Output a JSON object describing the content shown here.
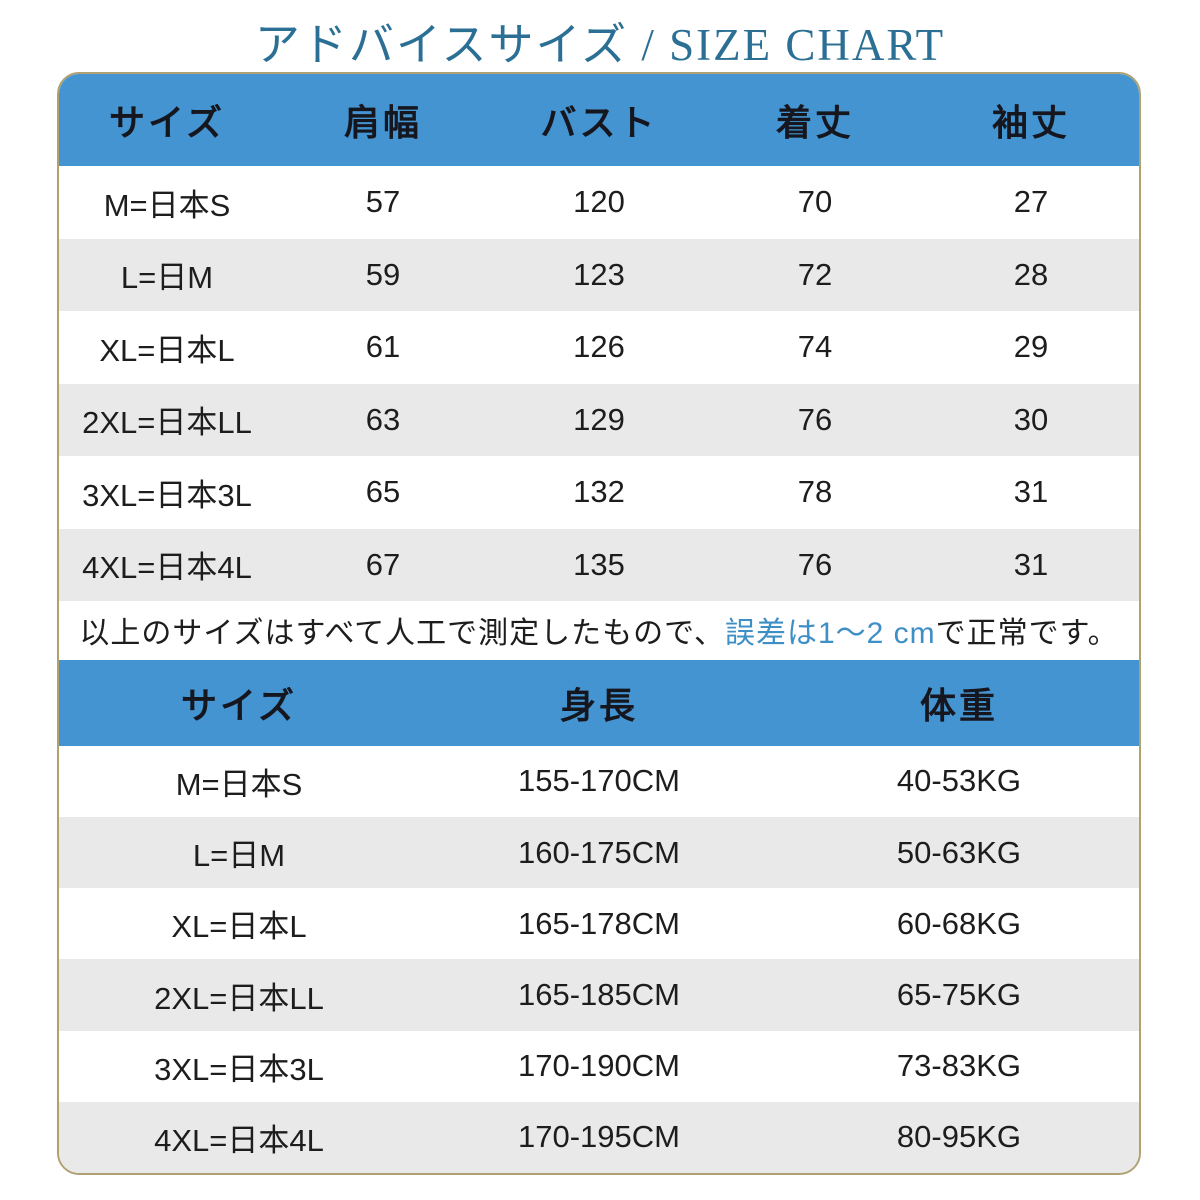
{
  "page": {
    "title": "アドバイスサイズ / SIZE CHART"
  },
  "colors": {
    "header_blue": "#4394d0",
    "row_alt": "#e9e9e9",
    "frame_border": "#b0a173",
    "title_teal": "#2b7094",
    "note_highlight": "#3e8fc6",
    "header_text": "#16161f",
    "body_text": "#1d1d1d"
  },
  "size_table": {
    "columns": [
      "サイズ",
      "肩幅",
      "バスト",
      "着丈",
      "袖丈"
    ],
    "rows": [
      [
        "M=日本S",
        "57",
        "120",
        "70",
        "27"
      ],
      [
        "L=日M",
        "59",
        "123",
        "72",
        "28"
      ],
      [
        "XL=日本L",
        "61",
        "126",
        "74",
        "29"
      ],
      [
        "2XL=日本LL",
        "63",
        "129",
        "76",
        "30"
      ],
      [
        "3XL=日本3L",
        "65",
        "132",
        "78",
        "31"
      ],
      [
        "4XL=日本4L",
        "67",
        "135",
        "76",
        "31"
      ]
    ]
  },
  "note": {
    "leading": "以上のサイズはすべて人工で測定したもので、",
    "highlight": "誤差は1～2 cm",
    "trailing": "で正常です。"
  },
  "body_table": {
    "columns": [
      "サイズ",
      "身長",
      "体重"
    ],
    "rows": [
      [
        "M=日本S",
        "155-170CM",
        "40-53KG"
      ],
      [
        "L=日M",
        "160-175CM",
        "50-63KG"
      ],
      [
        "XL=日本L",
        "165-178CM",
        "60-68KG"
      ],
      [
        "2XL=日本LL",
        "165-185CM",
        "65-75KG"
      ],
      [
        "3XL=日本3L",
        "170-190CM",
        "73-83KG"
      ],
      [
        "4XL=日本4L",
        "170-195CM",
        "80-95KG"
      ]
    ]
  }
}
